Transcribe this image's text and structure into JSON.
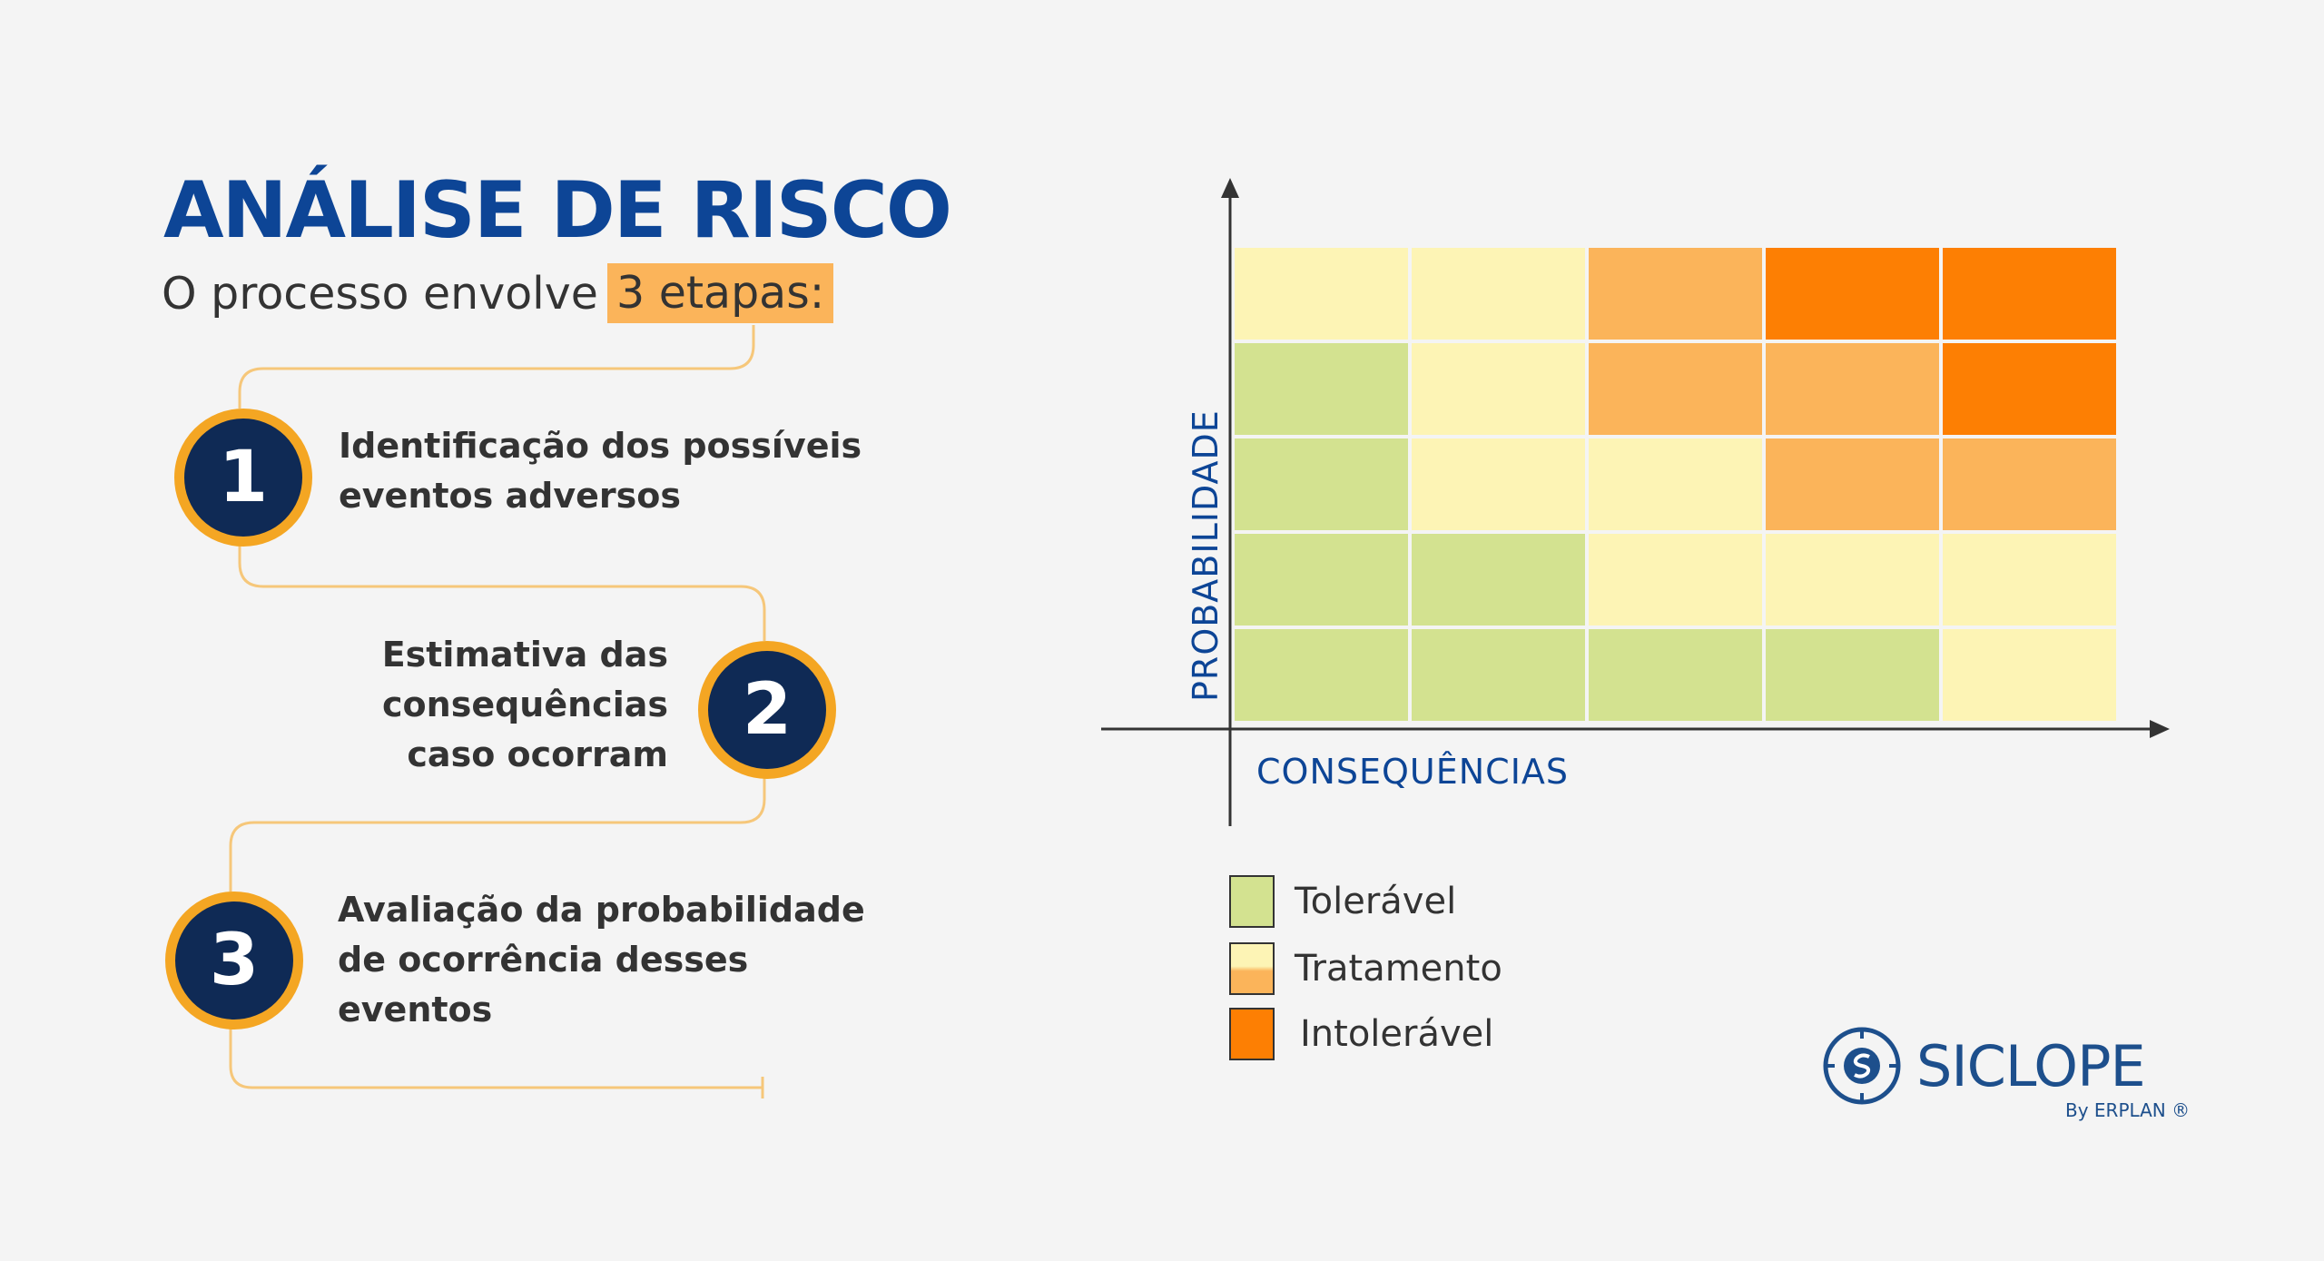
{
  "title": "ANÁLISE DE RISCO",
  "subtitle": {
    "prefix": "O processo envolve",
    "highlight": "3 etapas:"
  },
  "steps": [
    {
      "number": "1",
      "line1": "Identificação dos possíveis",
      "line2": "eventos adversos",
      "line3": ""
    },
    {
      "number": "2",
      "line1": "Estimativa das",
      "line2": "consequências",
      "line3": "caso ocorram"
    },
    {
      "number": "3",
      "line1": "Avaliação da probabilidade",
      "line2": "de ocorrência desses",
      "line3": "eventos"
    }
  ],
  "matrix": {
    "y_label": "PROBABILIDADE",
    "x_label": "CONSEQUÊNCIAS",
    "rows": [
      [
        "Tratamento",
        "Tratamento",
        "Tratamento",
        "Intolerável",
        "Intolerável"
      ],
      [
        "Tolerável",
        "Tratamento",
        "Tratamento",
        "Tratamento",
        "Intolerável"
      ],
      [
        "Tolerável",
        "Tratamento",
        "Tratamento",
        "Tratamento",
        "Tratamento"
      ],
      [
        "Tolerável",
        "Tolerável",
        "Tratamento",
        "Tratamento",
        "Tratamento"
      ],
      [
        "Tolerável",
        "Tolerável",
        "Tolerável",
        "Tolerável",
        "Tratamento"
      ]
    ],
    "shades": [
      [
        "light",
        "light",
        "medium",
        "dark",
        "dark"
      ],
      [
        "green",
        "light",
        "medium",
        "medium",
        "dark"
      ],
      [
        "green",
        "light",
        "light",
        "medium",
        "medium"
      ],
      [
        "green",
        "green",
        "light",
        "light",
        "light"
      ],
      [
        "green",
        "green",
        "green",
        "green",
        "light"
      ]
    ]
  },
  "legend": [
    {
      "label": "Tolerável",
      "color": "#d3e290"
    },
    {
      "label": "Tratamento",
      "color_top": "#fdf4b5",
      "color_bottom": "#fbb45a"
    },
    {
      "label": "Intolerável",
      "color": "#fd7f03"
    }
  ],
  "colors": {
    "green": "#d3e290",
    "light": "#fdf4b5",
    "medium": "#fbb45a",
    "dark": "#fd7f03",
    "title": "#0d4596",
    "circle": "#0f2a55",
    "circle_ring": "#f4a623",
    "connector": "#f6c77a"
  },
  "brand": {
    "name": "SICLOPE",
    "sub": "By ERPLAN ®"
  }
}
